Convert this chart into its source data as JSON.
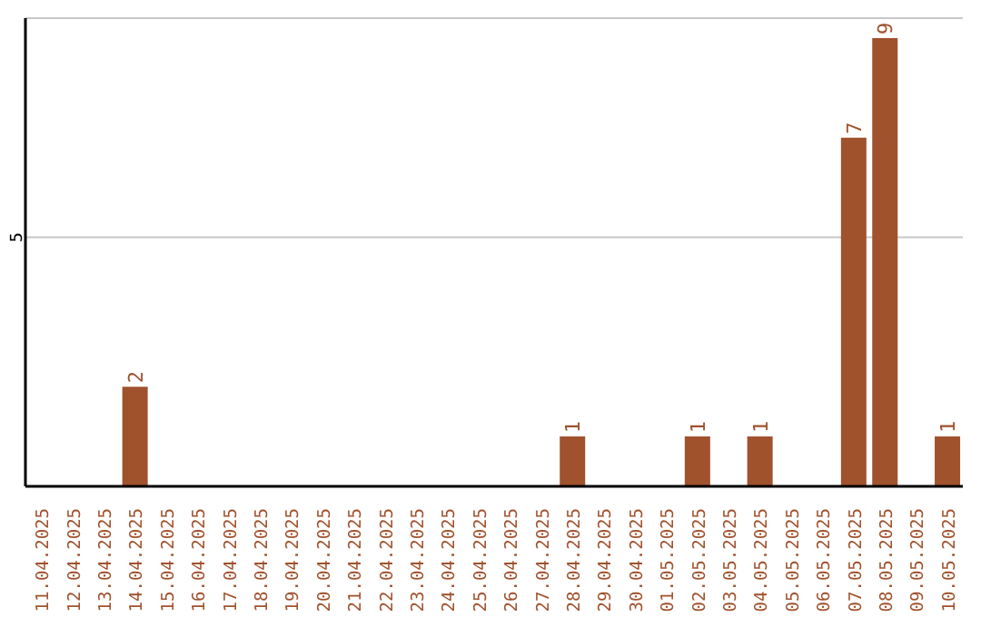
{
  "chart_data": {
    "type": "bar",
    "categories": [
      "11.04.2025",
      "12.04.2025",
      "13.04.2025",
      "14.04.2025",
      "15.04.2025",
      "16.04.2025",
      "17.04.2025",
      "18.04.2025",
      "19.04.2025",
      "20.04.2025",
      "21.04.2025",
      "22.04.2025",
      "23.04.2025",
      "24.04.2025",
      "25.04.2025",
      "26.04.2025",
      "27.04.2025",
      "28.04.2025",
      "29.04.2025",
      "30.04.2025",
      "01.05.2025",
      "02.05.2025",
      "03.05.2025",
      "04.05.2025",
      "05.05.2025",
      "06.05.2025",
      "07.05.2025",
      "08.05.2025",
      "09.05.2025",
      "10.05.2025"
    ],
    "values": [
      0,
      0,
      0,
      2,
      0,
      0,
      0,
      0,
      0,
      0,
      0,
      0,
      0,
      0,
      0,
      0,
      0,
      1,
      0,
      0,
      0,
      1,
      0,
      1,
      0,
      0,
      7,
      9,
      0,
      1
    ],
    "value_labels": [
      null,
      null,
      null,
      "2",
      null,
      null,
      null,
      null,
      null,
      null,
      null,
      null,
      null,
      null,
      null,
      null,
      null,
      "1",
      null,
      null,
      null,
      "1",
      null,
      "1",
      null,
      null,
      "7",
      "9",
      null,
      "1"
    ],
    "color": "#a0522d",
    "ylim": [
      0,
      9.4
    ],
    "yticks": [
      5
    ],
    "grid": "y"
  }
}
